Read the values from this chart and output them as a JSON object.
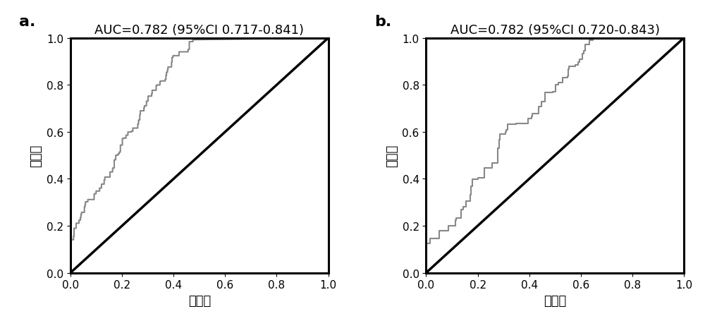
{
  "panel_a": {
    "label": "a.",
    "title": "AUC=0.782 (95%CI 0.717-0.841)",
    "xlabel": "特异性",
    "ylabel": "敏感性",
    "roc_color": "#888888",
    "diag_color": "#000000"
  },
  "panel_b": {
    "label": "b.",
    "title": "AUC=0.782 (95%CI 0.720-0.843)",
    "xlabel": "特异性",
    "ylabel": "敏感性",
    "roc_color": "#888888",
    "diag_color": "#000000"
  },
  "background_color": "#ffffff",
  "title_fontsize": 13,
  "label_fontsize": 13,
  "tick_fontsize": 11,
  "panel_label_fontsize": 16,
  "roc_linewidth": 1.5,
  "diag_linewidth": 2.5,
  "figsize": [
    10.0,
    4.56
  ],
  "dpi": 100
}
